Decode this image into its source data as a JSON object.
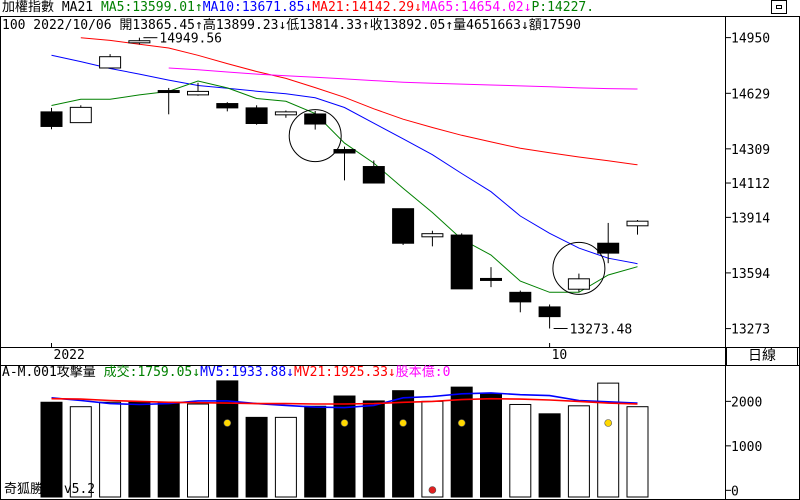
{
  "header_line1": [
    {
      "text": "加權指數 MA21 ",
      "color": "#000000"
    },
    {
      "text": "MA5:13599.01↑",
      "color": "#008000"
    },
    {
      "text": "MA10:13671.85↓",
      "color": "#0000ff"
    },
    {
      "text": "MA21:14142.29↓",
      "color": "#ff0000"
    },
    {
      "text": "MA65:14654.02↓",
      "color": "#ff00ff"
    },
    {
      "text": "P:14227.",
      "color": "#008000"
    }
  ],
  "header_line2": "100 2022/10/06 開13865.45↑高13899.23↓低13814.33↑收13892.05↑量4651663↓額17590",
  "volume_header": [
    {
      "text": "A-M.001攻擊量 ",
      "color": "#000000"
    },
    {
      "text": "成交:1759.05↓",
      "color": "#008000"
    },
    {
      "text": "MV5:1933.88↓",
      "color": "#0000ff"
    },
    {
      "text": "MV21:1925.33↓",
      "color": "#ff0000"
    },
    {
      "text": "股本億:0",
      "color": "#ff00ff"
    }
  ],
  "footer_label": "奇狐勝券 v5.2",
  "period_label": "日線",
  "colors": {
    "ma5": "#008000",
    "ma10": "#0000ff",
    "ma21": "#ff0000",
    "ma65": "#ff00ff",
    "candle": "#000000",
    "grid": "#000000"
  },
  "chart_data": [
    {
      "type": "candlestick",
      "title": "加權指數",
      "x_labels": [
        {
          "index": 0,
          "text": "2022"
        },
        {
          "index": 17,
          "text": "10"
        }
      ],
      "y_ticks": [
        14950,
        14629,
        14309,
        14112,
        13914,
        13594,
        13273
      ],
      "ylim": [
        13190,
        15040
      ],
      "candles": [
        {
          "open": 14522,
          "high": 14545,
          "low": 14422,
          "close": 14438
        },
        {
          "open": 14460,
          "high": 14560,
          "low": 14460,
          "close": 14548
        },
        {
          "open": 14775,
          "high": 14855,
          "low": 14775,
          "close": 14840
        },
        {
          "open": 14920,
          "high": 14949.56,
          "low": 14910,
          "close": 14932
        },
        {
          "open": 14645,
          "high": 14660,
          "low": 14508,
          "close": 14635
        },
        {
          "open": 14620,
          "high": 14690,
          "low": 14615,
          "close": 14640
        },
        {
          "open": 14570,
          "high": 14578,
          "low": 14525,
          "close": 14545
        },
        {
          "open": 14545,
          "high": 14560,
          "low": 14448,
          "close": 14455
        },
        {
          "open": 14505,
          "high": 14530,
          "low": 14488,
          "close": 14522
        },
        {
          "open": 14510,
          "high": 14527,
          "low": 14420,
          "close": 14452
        },
        {
          "open": 14305,
          "high": 14322,
          "low": 14127,
          "close": 14285
        },
        {
          "open": 14207,
          "high": 14242,
          "low": 14112,
          "close": 14112
        },
        {
          "open": 13964,
          "high": 13964,
          "low": 13755,
          "close": 13765
        },
        {
          "open": 13802,
          "high": 13837,
          "low": 13747,
          "close": 13820
        },
        {
          "open": 13812,
          "high": 13822,
          "low": 13502,
          "close": 13502
        },
        {
          "open": 13562,
          "high": 13627,
          "low": 13512,
          "close": 13557
        },
        {
          "open": 13482,
          "high": 13492,
          "low": 13367,
          "close": 13427
        },
        {
          "open": 13398,
          "high": 13412,
          "low": 13273.48,
          "close": 13342
        },
        {
          "open": 13500,
          "high": 13590,
          "low": 13485,
          "close": 13560
        },
        {
          "open": 13765,
          "high": 13882,
          "low": 13650,
          "close": 13708
        },
        {
          "open": 13865.45,
          "high": 13899.23,
          "low": 13814.33,
          "close": 13892.05
        }
      ],
      "moving_averages": [
        {
          "name": "MA10",
          "color": "#0000ff",
          "values": [
            14848,
            14812,
            14772,
            14740,
            14705,
            14674,
            14658,
            14641,
            14626,
            14603,
            14547,
            14457,
            14367,
            14275,
            14167,
            14062,
            13922,
            13822,
            13737,
            13679,
            13647
          ]
        },
        {
          "name": "MA5",
          "color": "#008000",
          "values": [
            14559,
            14595,
            14595,
            14620,
            14640,
            14700,
            14660,
            14599,
            14583,
            14512,
            14342,
            14227,
            14082,
            13942,
            13788,
            13697,
            13547,
            13482,
            13482,
            13582,
            13630
          ]
        },
        {
          "name": "MA21",
          "color": "#ff0000",
          "values": [
            null,
            14949.56,
            14934,
            14912,
            14890,
            14848,
            14800,
            14755,
            14715,
            14662,
            14606,
            14540,
            14480,
            14432,
            14387,
            14349,
            14312,
            14287,
            14262,
            14240,
            14217
          ]
        },
        {
          "name": "MA65",
          "color": "#ff00ff",
          "values": [
            null,
            null,
            null,
            null,
            14775,
            14765,
            14752,
            14740,
            14730,
            14722,
            14712,
            14702,
            14693,
            14687,
            14682,
            14677,
            14672,
            14667,
            14660,
            14656,
            14654
          ]
        }
      ],
      "annotations": [
        {
          "text": "14949.56",
          "index": 3,
          "value": 14949.56
        },
        {
          "text": "13273.48",
          "index": 17,
          "value": 13273.48
        }
      ],
      "circle_marks": [
        {
          "index": 9,
          "value": 14385
        },
        {
          "index": 18,
          "value": 13620
        }
      ]
    },
    {
      "type": "bar",
      "title": "A-M.001攻擊量",
      "y_ticks": [
        2000,
        1000,
        0
      ],
      "ylim": [
        -150,
        2750
      ],
      "bars": [
        {
          "value": 1980,
          "filled": true,
          "dot": null
        },
        {
          "value": 1880,
          "filled": false,
          "dot": null
        },
        {
          "value": 1980,
          "filled": false,
          "dot": null
        },
        {
          "value": 1980,
          "filled": true,
          "dot": null
        },
        {
          "value": 1980,
          "filled": true,
          "dot": null
        },
        {
          "value": 1940,
          "filled": false,
          "dot": null
        },
        {
          "value": 2460,
          "filled": true,
          "dot": "yellow"
        },
        {
          "value": 1640,
          "filled": true,
          "dot": null
        },
        {
          "value": 1640,
          "filled": false,
          "dot": null
        },
        {
          "value": 1890,
          "filled": true,
          "dot": null
        },
        {
          "value": 2120,
          "filled": true,
          "dot": "yellow"
        },
        {
          "value": 2010,
          "filled": true,
          "dot": null
        },
        {
          "value": 2240,
          "filled": true,
          "dot": "yellow"
        },
        {
          "value": 2000,
          "filled": false,
          "dot": "red"
        },
        {
          "value": 2320,
          "filled": true,
          "dot": "yellow"
        },
        {
          "value": 2170,
          "filled": true,
          "dot": null
        },
        {
          "value": 1930,
          "filled": false,
          "dot": null
        },
        {
          "value": 1720,
          "filled": true,
          "dot": null
        },
        {
          "value": 1900,
          "filled": false,
          "dot": null
        },
        {
          "value": 2410,
          "filled": false,
          "dot": "yellow"
        },
        {
          "value": 1880,
          "filled": false,
          "dot": null
        }
      ],
      "lines": [
        {
          "name": "MV5",
          "color": "#0000ff",
          "values": [
            2080,
            2020,
            1950,
            1930,
            1950,
            2010,
            2010,
            1950,
            1910,
            1870,
            1860,
            1910,
            2080,
            2110,
            2170,
            2190,
            2150,
            2130,
            2020,
            1990,
            1960
          ]
        },
        {
          "name": "MV21",
          "color": "#ff0000",
          "values": [
            2060,
            2050,
            2020,
            2000,
            1980,
            1970,
            1960,
            1950,
            1950,
            1940,
            1940,
            1950,
            1980,
            2000,
            2040,
            2060,
            2050,
            2030,
            2000,
            1960,
            1940
          ]
        }
      ]
    }
  ]
}
